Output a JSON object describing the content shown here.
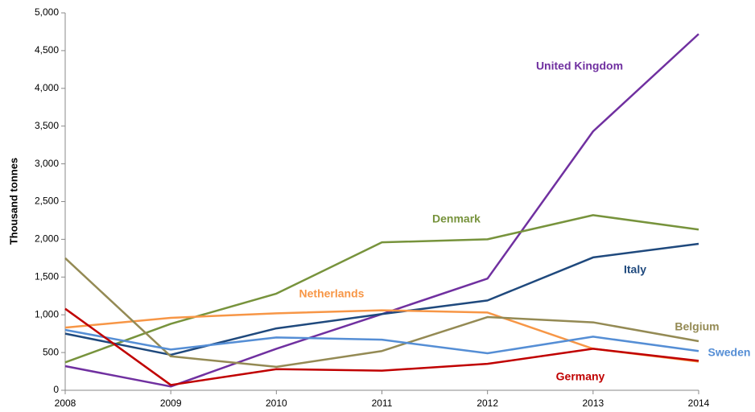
{
  "chart_data": {
    "type": "line",
    "y_label": "Thousand tonnes",
    "x": [
      2008,
      2009,
      2010,
      2011,
      2012,
      2013,
      2014
    ],
    "xlim": [
      2008,
      2014
    ],
    "xticks": [
      2008,
      2009,
      2010,
      2011,
      2012,
      2013,
      2014
    ],
    "ylim": [
      0,
      5000
    ],
    "yticks": [
      0,
      500,
      {
        "value": 1000,
        "label": "1,000"
      },
      {
        "value": 1500,
        "label": "1,500"
      },
      {
        "value": 2000,
        "label": "2,000"
      },
      {
        "value": 2500,
        "label": "2,500"
      },
      {
        "value": 3000,
        "label": "3,000"
      },
      {
        "value": 3500,
        "label": "3,500"
      },
      {
        "value": 4000,
        "label": "4,000"
      },
      {
        "value": 4500,
        "label": "4,500"
      },
      {
        "value": 5000,
        "label": "5,000"
      }
    ],
    "grid": false,
    "series": [
      {
        "name": "United Kingdom",
        "color": "#7030a0",
        "values": [
          320,
          50,
          550,
          1010,
          1480,
          3430,
          4720
        ]
      },
      {
        "name": "Denmark",
        "color": "#77933c",
        "values": [
          370,
          880,
          1280,
          1960,
          2000,
          2320,
          2130
        ]
      },
      {
        "name": "Italy",
        "color": "#1f497d",
        "values": [
          750,
          470,
          820,
          1010,
          1190,
          1760,
          1940
        ]
      },
      {
        "name": "Netherlands",
        "color": "#f79646",
        "values": [
          830,
          960,
          1020,
          1060,
          1030,
          550,
          380
        ]
      },
      {
        "name": "Belgium",
        "color": "#948a54",
        "values": [
          1750,
          450,
          310,
          520,
          970,
          900,
          650
        ]
      },
      {
        "name": "Sweden",
        "color": "#558ed5",
        "values": [
          800,
          540,
          700,
          670,
          490,
          710,
          520
        ]
      },
      {
        "name": "Germany",
        "color": "#c00000",
        "values": [
          1080,
          70,
          280,
          260,
          350,
          550,
          390
        ]
      }
    ]
  }
}
